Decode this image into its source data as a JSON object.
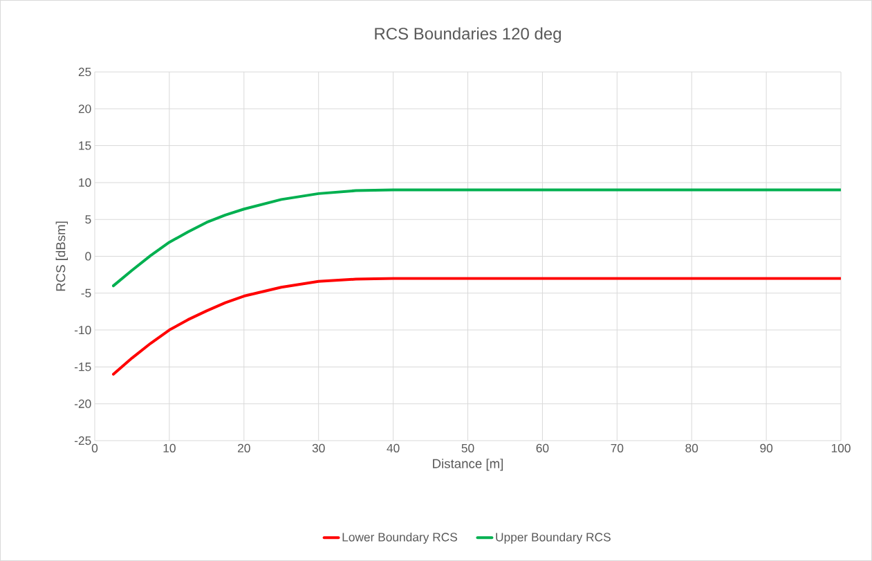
{
  "chart_data": {
    "type": "line",
    "title": "RCS Boundaries 120 deg",
    "xlabel": "Distance [m]",
    "ylabel": "RCS [dBsm]",
    "xlim": [
      0,
      100
    ],
    "xticks": [
      0,
      10,
      20,
      30,
      40,
      50,
      60,
      70,
      80,
      90,
      100
    ],
    "ylim": [
      -25,
      25
    ],
    "yticks": [
      -25,
      -20,
      -15,
      -10,
      -5,
      0,
      5,
      10,
      15,
      20,
      25
    ],
    "grid": true,
    "legend": "bottom",
    "marker": "none",
    "line_style": "solid",
    "series": [
      {
        "name": "Lower Boundary RCS",
        "color": "#ff0000",
        "x": [
          2.5,
          5,
          7.5,
          10,
          12.5,
          15,
          17.5,
          20,
          25,
          30,
          35,
          40,
          45,
          50,
          60,
          70,
          80,
          90,
          100
        ],
        "values": [
          -16,
          -13.8,
          -11.8,
          -10,
          -8.6,
          -7.4,
          -6.3,
          -5.4,
          -4.2,
          -3.4,
          -3.1,
          -3,
          -3,
          -3,
          -3,
          -3,
          -3,
          -3,
          -3
        ]
      },
      {
        "name": "Upper Boundary RCS",
        "color": "#00b050",
        "x": [
          2.5,
          5,
          7.5,
          10,
          12.5,
          15,
          17.5,
          20,
          25,
          30,
          35,
          40,
          45,
          50,
          60,
          70,
          80,
          90,
          100
        ],
        "values": [
          -4,
          -1.9,
          0.1,
          1.9,
          3.3,
          4.6,
          5.6,
          6.4,
          7.7,
          8.5,
          8.9,
          9,
          9,
          9,
          9,
          9,
          9,
          9,
          9
        ]
      }
    ]
  }
}
